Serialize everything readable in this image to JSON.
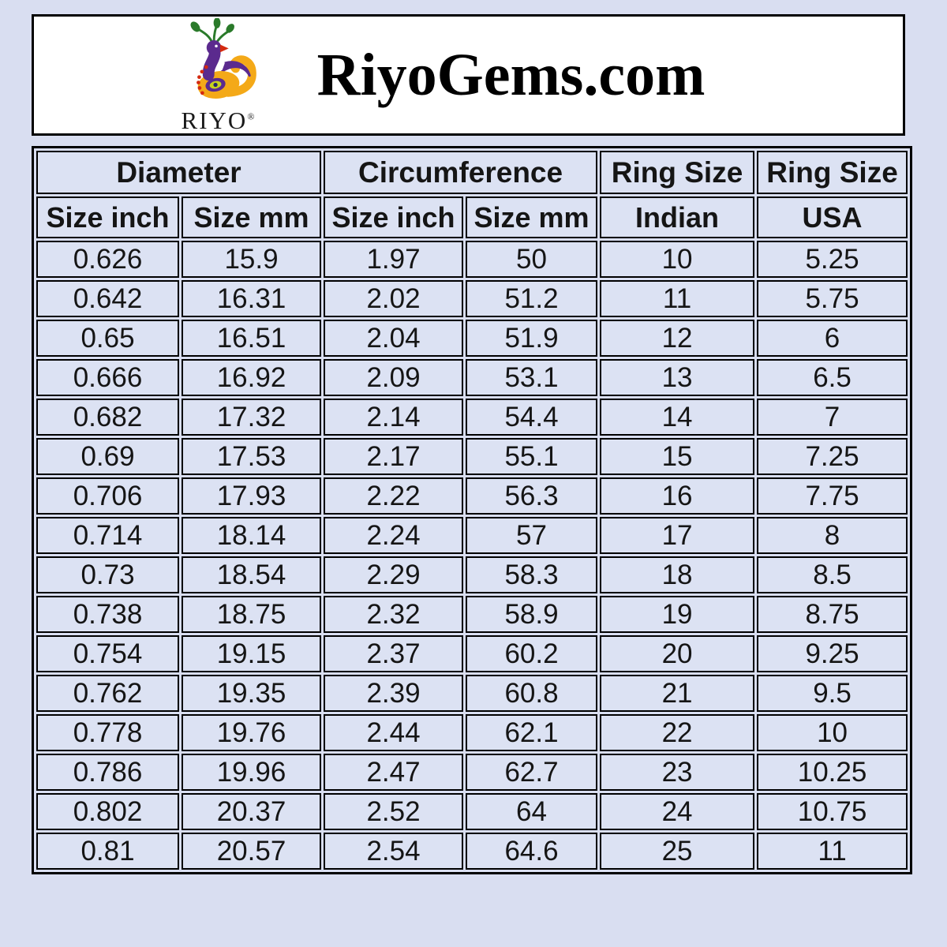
{
  "page": {
    "background_color": "#d9def1"
  },
  "header": {
    "site_title": "RiyoGems.com",
    "logo": {
      "brand": "RIYO",
      "registered_mark": "®",
      "icon": "peacock-logo-icon"
    }
  },
  "table": {
    "group_headers": [
      {
        "label": "Diameter",
        "span": 2
      },
      {
        "label": "Circumference",
        "span": 2
      },
      {
        "label": "Ring Size",
        "span": 1
      },
      {
        "label": "Ring Size",
        "span": 1
      }
    ],
    "sub_headers": [
      "Size inch",
      "Size mm",
      "Size inch",
      "Size mm",
      "Indian",
      "USA"
    ],
    "highlighted_column": "Indian",
    "colors": {
      "cell_background": "#dce2f3",
      "indian_column_background": "#b5c4e5",
      "border": "#000000"
    }
  },
  "chart_data": {
    "type": "table",
    "title": "RiyoGems.com ring size conversion chart",
    "columns": [
      "Diameter Size inch",
      "Diameter Size mm",
      "Circumference Size inch",
      "Circumference Size mm",
      "Ring Size Indian",
      "Ring Size USA"
    ],
    "rows": [
      [
        "0.626",
        "15.9",
        "1.97",
        "50",
        "10",
        "5.25"
      ],
      [
        "0.642",
        "16.31",
        "2.02",
        "51.2",
        "11",
        "5.75"
      ],
      [
        "0.65",
        "16.51",
        "2.04",
        "51.9",
        "12",
        "6"
      ],
      [
        "0.666",
        "16.92",
        "2.09",
        "53.1",
        "13",
        "6.5"
      ],
      [
        "0.682",
        "17.32",
        "2.14",
        "54.4",
        "14",
        "7"
      ],
      [
        "0.69",
        "17.53",
        "2.17",
        "55.1",
        "15",
        "7.25"
      ],
      [
        "0.706",
        "17.93",
        "2.22",
        "56.3",
        "16",
        "7.75"
      ],
      [
        "0.714",
        "18.14",
        "2.24",
        "57",
        "17",
        "8"
      ],
      [
        "0.73",
        "18.54",
        "2.29",
        "58.3",
        "18",
        "8.5"
      ],
      [
        "0.738",
        "18.75",
        "2.32",
        "58.9",
        "19",
        "8.75"
      ],
      [
        "0.754",
        "19.15",
        "2.37",
        "60.2",
        "20",
        "9.25"
      ],
      [
        "0.762",
        "19.35",
        "2.39",
        "60.8",
        "21",
        "9.5"
      ],
      [
        "0.778",
        "19.76",
        "2.44",
        "62.1",
        "22",
        "10"
      ],
      [
        "0.786",
        "19.96",
        "2.47",
        "62.7",
        "23",
        "10.25"
      ],
      [
        "0.802",
        "20.37",
        "2.52",
        "64",
        "24",
        "10.75"
      ],
      [
        "0.81",
        "20.57",
        "2.54",
        "64.6",
        "25",
        "11"
      ]
    ]
  }
}
